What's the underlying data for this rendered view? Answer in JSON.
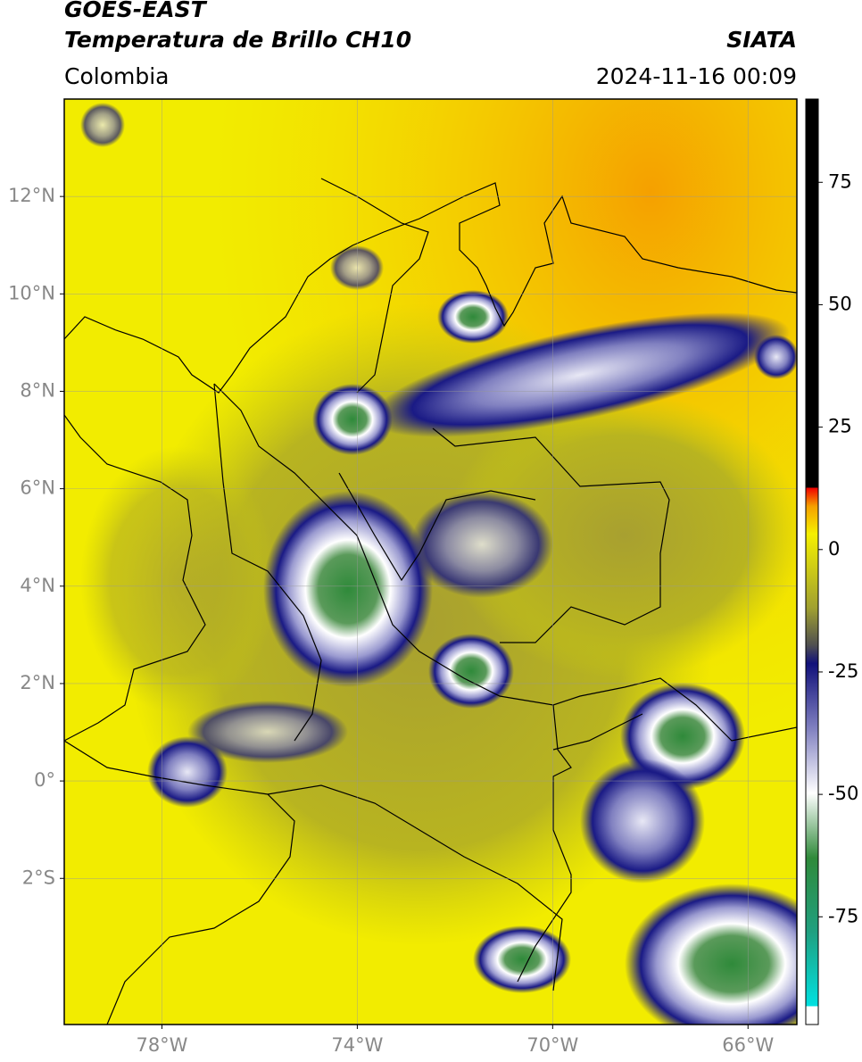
{
  "header": {
    "title": "GOES-EAST",
    "subtitle": "Temperatura de Brillo CH10",
    "source": "SIATA",
    "region": "Colombia",
    "datetime": "2024-11-16 00:09"
  },
  "map": {
    "xlim": [
      -80,
      -65
    ],
    "ylim": [
      -5,
      14
    ],
    "xticks": [
      {
        "value": -78,
        "label": "78°W"
      },
      {
        "value": -74,
        "label": "74°W"
      },
      {
        "value": -70,
        "label": "70°W"
      },
      {
        "value": -66,
        "label": "66°W"
      }
    ],
    "yticks": [
      {
        "value": 12,
        "label": "12°N"
      },
      {
        "value": 10,
        "label": "10°N"
      },
      {
        "value": 8,
        "label": "8°N"
      },
      {
        "value": 6,
        "label": "6°N"
      },
      {
        "value": 4,
        "label": "4°N"
      },
      {
        "value": 2,
        "label": "2°N"
      },
      {
        "value": 0,
        "label": "0°"
      },
      {
        "value": -2,
        "label": "2°S"
      }
    ],
    "grid": true
  },
  "colorbar": {
    "lim": [
      -97,
      92
    ],
    "ticks": [
      75,
      50,
      25,
      0,
      -25,
      -50,
      -75
    ]
  }
}
